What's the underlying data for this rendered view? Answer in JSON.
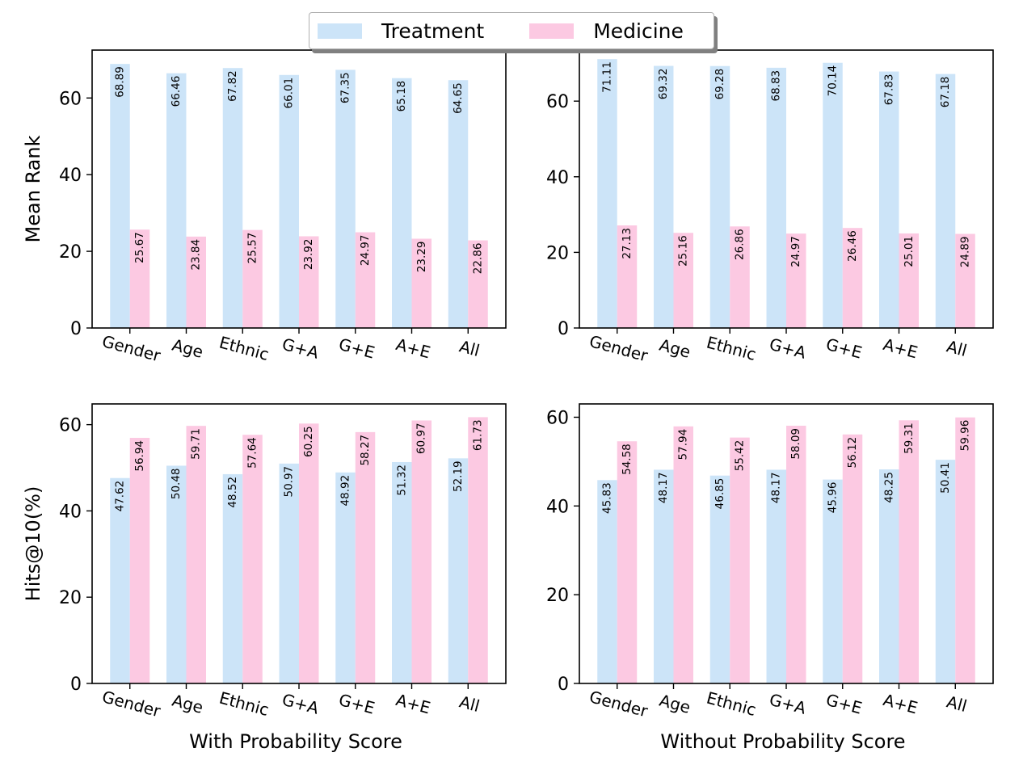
{
  "legend": {
    "treatment": "Treatment",
    "medicine": "Medicine"
  },
  "colors": {
    "treatment": "#cce4f8",
    "medicine": "#fcc9e2"
  },
  "chart_data": [
    {
      "type": "bar",
      "position": "top-left",
      "categories": [
        "Gender",
        "Age",
        "Ethnic",
        "G+A",
        "G+E",
        "A+E",
        "All"
      ],
      "series": [
        {
          "name": "Treatment",
          "values": [
            68.89,
            66.46,
            67.82,
            66.01,
            67.35,
            65.18,
            64.65
          ]
        },
        {
          "name": "Medicine",
          "values": [
            25.67,
            23.84,
            25.57,
            23.92,
            24.97,
            23.29,
            22.86
          ]
        }
      ],
      "ylabel": "Mean Rank",
      "xlabel": "",
      "ylim": [
        0,
        72.5
      ],
      "yticks": [
        0,
        20,
        40,
        60
      ]
    },
    {
      "type": "bar",
      "position": "top-right",
      "categories": [
        "Gender",
        "Age",
        "Ethnic",
        "G+A",
        "G+E",
        "A+E",
        "All"
      ],
      "series": [
        {
          "name": "Treatment",
          "values": [
            71.11,
            69.32,
            69.28,
            68.83,
            70.14,
            67.83,
            67.18
          ]
        },
        {
          "name": "Medicine",
          "values": [
            27.13,
            25.16,
            26.86,
            24.97,
            26.46,
            25.01,
            24.89
          ]
        }
      ],
      "ylabel": "",
      "xlabel": "",
      "ylim": [
        0,
        73.5
      ],
      "yticks": [
        0,
        20,
        40,
        60
      ]
    },
    {
      "type": "bar",
      "position": "bottom-left",
      "categories": [
        "Gender",
        "Age",
        "Ethnic",
        "G+A",
        "G+E",
        "A+E",
        "All"
      ],
      "series": [
        {
          "name": "Treatment",
          "values": [
            47.62,
            50.48,
            48.52,
            50.97,
            48.92,
            51.32,
            52.19
          ]
        },
        {
          "name": "Medicine",
          "values": [
            56.94,
            59.71,
            57.64,
            60.25,
            58.27,
            60.97,
            61.73
          ]
        }
      ],
      "ylabel": "Hits@10(%)",
      "xlabel": "With Probability Score",
      "ylim": [
        0,
        64.8
      ],
      "yticks": [
        0,
        20,
        40,
        60
      ]
    },
    {
      "type": "bar",
      "position": "bottom-right",
      "categories": [
        "Gender",
        "Age",
        "Ethnic",
        "G+A",
        "G+E",
        "A+E",
        "All"
      ],
      "series": [
        {
          "name": "Treatment",
          "values": [
            45.83,
            48.17,
            46.85,
            48.17,
            45.96,
            48.25,
            50.41
          ]
        },
        {
          "name": "Medicine",
          "values": [
            54.58,
            57.94,
            55.42,
            58.09,
            56.12,
            59.31,
            59.96
          ]
        }
      ],
      "ylabel": "",
      "xlabel": "Without Probability Score",
      "ylim": [
        0,
        63.0
      ],
      "yticks": [
        0,
        20,
        40,
        60
      ]
    }
  ]
}
